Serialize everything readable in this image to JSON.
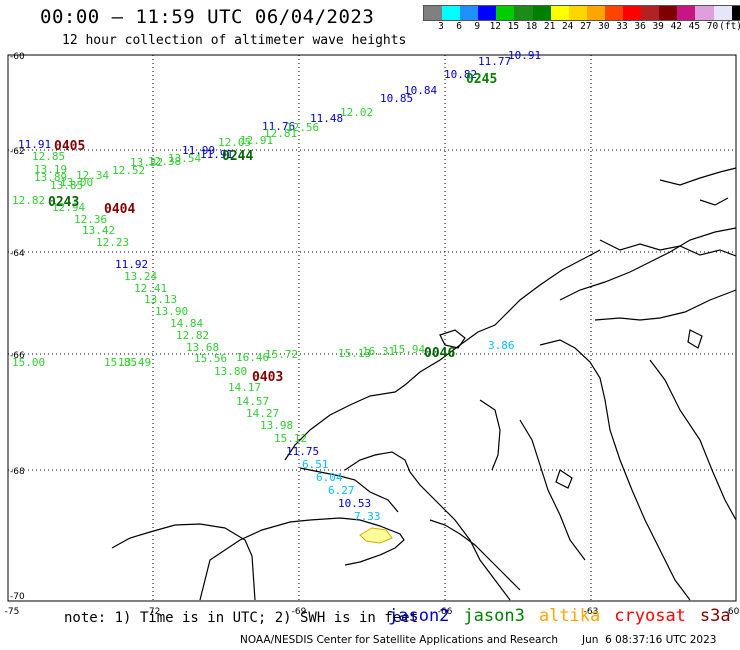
{
  "header": {
    "title": "00:00 – 11:59 UTC 06/04/2023",
    "subtitle": "12 hour collection of altimeter wave heights"
  },
  "scale": {
    "colors": [
      "#808080",
      "#00ffff",
      "#1e90ff",
      "#0000ff",
      "#00cd00",
      "#1b8b1b",
      "#008000",
      "#ffff00",
      "#ffd700",
      "#ffa500",
      "#ff4500",
      "#ff0000",
      "#b22222",
      "#800000",
      "#c71585",
      "#dda0dd",
      "#e6e6fa",
      "#000000"
    ],
    "labels": [
      "3",
      "6",
      "9",
      "12",
      "15",
      "18",
      "21",
      "24",
      "27",
      "30",
      "33",
      "36",
      "39",
      "42",
      "45",
      "70",
      "(ft)"
    ]
  },
  "map": {
    "lon_ticks": [
      "-75",
      "-72",
      "-69",
      "-66",
      "-63",
      "-60"
    ],
    "lat_ticks": [
      "-60",
      "-62",
      "-64",
      "-66",
      "-68",
      "-70"
    ],
    "passes": [
      {
        "label": "0405",
        "color": "#800000"
      },
      {
        "label": "0243",
        "color": "#006400"
      },
      {
        "label": "0404",
        "color": "#800000"
      },
      {
        "label": "0244",
        "color": "#006400"
      },
      {
        "label": "0245",
        "color": "#008000"
      },
      {
        "label": "0403",
        "color": "#800000"
      },
      {
        "label": "0046",
        "color": "#006400"
      }
    ],
    "wave_labels": [
      {
        "v": "10.91",
        "c": "#0000cd"
      },
      {
        "v": "11.77",
        "c": "#0000cd"
      },
      {
        "v": "10.82",
        "c": "#0000cd"
      },
      {
        "v": "10.84",
        "c": "#0000cd"
      },
      {
        "v": "10.85",
        "c": "#0000cd"
      },
      {
        "v": "11.48",
        "c": "#0000cd"
      },
      {
        "v": "11.76",
        "c": "#0000cd"
      },
      {
        "v": "11.91",
        "c": "#0000cd"
      },
      {
        "v": "11.99",
        "c": "#0000cd"
      },
      {
        "v": "11.91",
        "c": "#0000cd"
      },
      {
        "v": "12.85",
        "c": "#32cd32"
      },
      {
        "v": "13.19",
        "c": "#32cd32"
      },
      {
        "v": "13.89",
        "c": "#32cd32"
      },
      {
        "v": "13.85",
        "c": "#32cd32"
      },
      {
        "v": "13.00",
        "c": "#32cd32"
      },
      {
        "v": "12.82",
        "c": "#32cd32"
      },
      {
        "v": "12.94",
        "c": "#32cd32"
      },
      {
        "v": "12.36",
        "c": "#32cd32"
      },
      {
        "v": "13.42",
        "c": "#32cd32"
      },
      {
        "v": "12.23",
        "c": "#32cd32"
      },
      {
        "v": "11.92",
        "c": "#0000cd"
      },
      {
        "v": "13.24",
        "c": "#32cd32"
      },
      {
        "v": "12.41",
        "c": "#32cd32"
      },
      {
        "v": "13.13",
        "c": "#32cd32"
      },
      {
        "v": "13.90",
        "c": "#32cd32"
      },
      {
        "v": "14.84",
        "c": "#32cd32"
      },
      {
        "v": "12.82",
        "c": "#32cd32"
      },
      {
        "v": "13.68",
        "c": "#32cd32"
      },
      {
        "v": "13.80",
        "c": "#32cd32"
      },
      {
        "v": "14.17",
        "c": "#32cd32"
      },
      {
        "v": "14.57",
        "c": "#32cd32"
      },
      {
        "v": "14.27",
        "c": "#32cd32"
      },
      {
        "v": "13.98",
        "c": "#32cd32"
      },
      {
        "v": "15.12",
        "c": "#32cd32"
      },
      {
        "v": "11.75",
        "c": "#0000cd"
      },
      {
        "v": "6.51",
        "c": "#00bfff"
      },
      {
        "v": "6.04",
        "c": "#00bfff"
      },
      {
        "v": "6.27",
        "c": "#00bfff"
      },
      {
        "v": "10.53",
        "c": "#0000cd"
      },
      {
        "v": "7.33",
        "c": "#00bfff"
      },
      {
        "v": "3.86",
        "c": "#00bfff"
      },
      {
        "v": "15.00",
        "c": "#32cd32"
      },
      {
        "v": "15.13",
        "c": "#32cd32"
      },
      {
        "v": "16.31",
        "c": "#32cd32"
      },
      {
        "v": "15.94",
        "c": "#32cd32"
      },
      {
        "v": "15.72",
        "c": "#32cd32"
      },
      {
        "v": "16.46",
        "c": "#32cd32"
      },
      {
        "v": "15.56",
        "c": "#32cd32"
      },
      {
        "v": "15.85",
        "c": "#32cd32"
      },
      {
        "v": "13.49",
        "c": "#32cd32"
      },
      {
        "v": "12.02",
        "c": "#32cd32"
      },
      {
        "v": "12.56",
        "c": "#32cd32"
      },
      {
        "v": "12.81",
        "c": "#32cd32"
      },
      {
        "v": "12.05",
        "c": "#32cd32"
      },
      {
        "v": "13.54",
        "c": "#32cd32"
      },
      {
        "v": "13.32",
        "c": "#32cd32"
      },
      {
        "v": "12.38",
        "c": "#32cd32"
      },
      {
        "v": "12.34",
        "c": "#32cd32"
      },
      {
        "v": "12.52",
        "c": "#32cd32"
      },
      {
        "v": "12.91",
        "c": "#32cd32"
      }
    ]
  },
  "footer": {
    "note": "note: 1) Time is in UTC; 2) SWH is in feet",
    "satellites": [
      {
        "name": "jason2",
        "color": "#0000cd"
      },
      {
        "name": "jason3",
        "color": "#008000"
      },
      {
        "name": "altika",
        "color": "#ffa500"
      },
      {
        "name": "cryosat",
        "color": "#ff0000"
      },
      {
        "name": "s3a",
        "color": "#800000"
      }
    ],
    "credit": "NOAA/NESDIS Center for Satellite Applications and Research",
    "timestamp": "Jun  6 08:37:16 UTC 2023"
  }
}
